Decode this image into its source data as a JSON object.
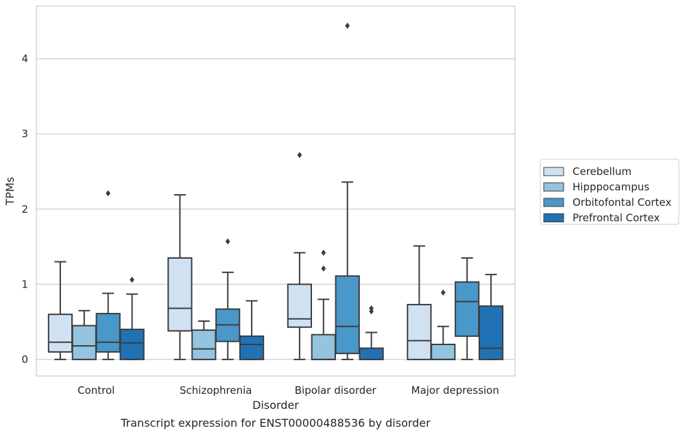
{
  "chart_data": {
    "type": "box",
    "caption": "Transcript expression for ENST00000488536 by disorder",
    "xlabel": "Disorder",
    "ylabel": "TPMs",
    "ylim": [
      -0.22,
      4.7
    ],
    "yticks": [
      0,
      1,
      2,
      3,
      4
    ],
    "grid": "horizontal",
    "legend_position": "right",
    "categories": [
      "Control",
      "Schizophrenia",
      "Bipolar disorder",
      "Major depression"
    ],
    "series": [
      {
        "name": "Cerebellum",
        "color": "#d0e1f2",
        "boxes": [
          {
            "whislo": 0.0,
            "q1": 0.1,
            "med": 0.23,
            "q3": 0.6,
            "whishi": 1.3,
            "fliers": []
          },
          {
            "whislo": 0.0,
            "q1": 0.38,
            "med": 0.68,
            "q3": 1.35,
            "whishi": 2.19,
            "fliers": []
          },
          {
            "whislo": 0.0,
            "q1": 0.43,
            "med": 0.54,
            "q3": 1.0,
            "whishi": 1.42,
            "fliers": [
              2.72
            ]
          },
          {
            "whislo": 0.0,
            "q1": 0.0,
            "med": 0.25,
            "q3": 0.73,
            "whishi": 1.51,
            "fliers": []
          }
        ]
      },
      {
        "name": "Hipppocampus",
        "color": "#94c4df",
        "boxes": [
          {
            "whislo": 0.0,
            "q1": 0.0,
            "med": 0.18,
            "q3": 0.45,
            "whishi": 0.65,
            "fliers": []
          },
          {
            "whislo": 0.0,
            "q1": 0.0,
            "med": 0.14,
            "q3": 0.39,
            "whishi": 0.51,
            "fliers": []
          },
          {
            "whislo": 0.0,
            "q1": 0.0,
            "med": 0.0,
            "q3": 0.33,
            "whishi": 0.8,
            "fliers": [
              1.21,
              1.42
            ]
          },
          {
            "whislo": 0.0,
            "q1": 0.0,
            "med": 0.0,
            "q3": 0.2,
            "whishi": 0.44,
            "fliers": [
              0.89
            ]
          }
        ]
      },
      {
        "name": "Orbitofontal Cortex",
        "color": "#4a98c9",
        "boxes": [
          {
            "whislo": 0.0,
            "q1": 0.1,
            "med": 0.23,
            "q3": 0.61,
            "whishi": 0.88,
            "fliers": [
              2.21
            ]
          },
          {
            "whislo": 0.0,
            "q1": 0.24,
            "med": 0.46,
            "q3": 0.67,
            "whishi": 1.16,
            "fliers": [
              1.57
            ]
          },
          {
            "whislo": 0.0,
            "q1": 0.08,
            "med": 0.44,
            "q3": 1.11,
            "whishi": 2.36,
            "fliers": [
              4.44
            ]
          },
          {
            "whislo": 0.0,
            "q1": 0.31,
            "med": 0.77,
            "q3": 1.03,
            "whishi": 1.35,
            "fliers": []
          }
        ]
      },
      {
        "name": "Prefrontal Cortex",
        "color": "#2171b5",
        "boxes": [
          {
            "whislo": 0.0,
            "q1": 0.0,
            "med": 0.22,
            "q3": 0.4,
            "whishi": 0.87,
            "fliers": [
              1.06
            ]
          },
          {
            "whislo": 0.0,
            "q1": 0.0,
            "med": 0.2,
            "q3": 0.31,
            "whishi": 0.78,
            "fliers": []
          },
          {
            "whislo": 0.0,
            "q1": 0.0,
            "med": 0.0,
            "q3": 0.15,
            "whishi": 0.36,
            "fliers": [
              0.64,
              0.68
            ]
          },
          {
            "whislo": 0.0,
            "q1": 0.0,
            "med": 0.15,
            "q3": 0.71,
            "whishi": 1.13,
            "fliers": []
          }
        ]
      }
    ]
  }
}
